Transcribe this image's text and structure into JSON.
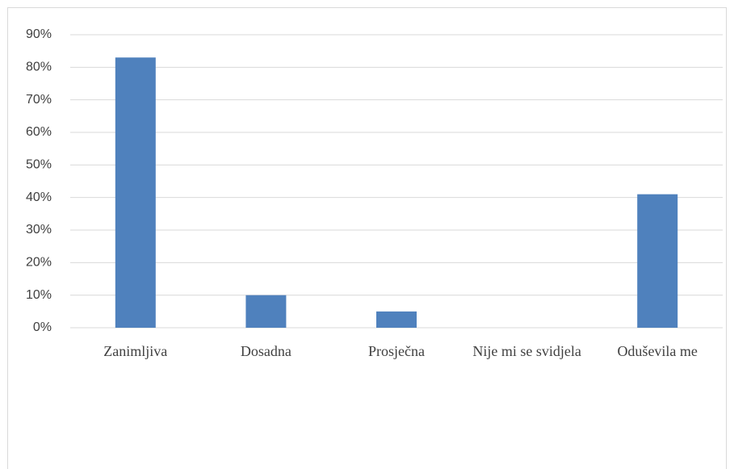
{
  "chart_data": {
    "type": "bar",
    "categories": [
      "Zanimljiva",
      "Dosadna",
      "Prosječna",
      "Nije mi se svidjela",
      "Oduševila me"
    ],
    "values": [
      83,
      10,
      5,
      0,
      41
    ],
    "color": "#4f81bd",
    "ylim": [
      0,
      90
    ],
    "yticks": [
      {
        "value": 0,
        "label": "0%"
      },
      {
        "value": 10,
        "label": "10%"
      },
      {
        "value": 20,
        "label": "20%"
      },
      {
        "value": 30,
        "label": "30%"
      },
      {
        "value": 40,
        "label": "40%"
      },
      {
        "value": 50,
        "label": "50%"
      },
      {
        "value": 60,
        "label": "60%"
      },
      {
        "value": 70,
        "label": "70%"
      },
      {
        "value": 80,
        "label": "80%"
      },
      {
        "value": 90,
        "label": "90%"
      }
    ],
    "grid": true
  }
}
